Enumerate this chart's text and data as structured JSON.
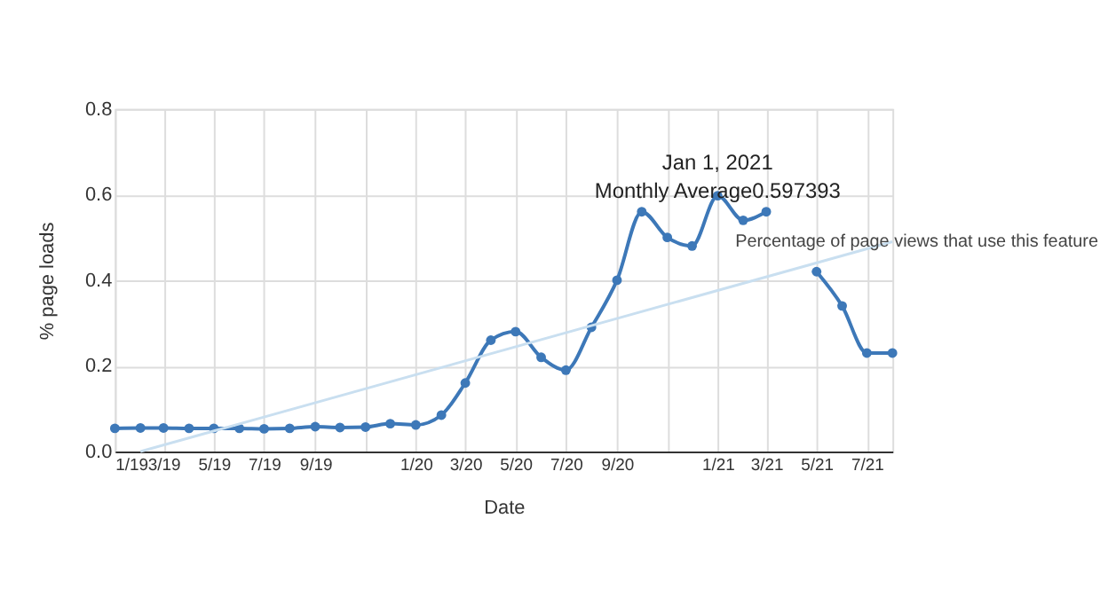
{
  "chart_data": {
    "type": "line",
    "xlabel": "Date",
    "ylabel": "% page loads",
    "x": [
      "2019-01",
      "2019-02",
      "2019-03",
      "2019-04",
      "2019-05",
      "2019-06",
      "2019-07",
      "2019-08",
      "2019-09",
      "2019-10",
      "2019-11",
      "2019-12",
      "2020-01",
      "2020-02",
      "2020-03",
      "2020-04",
      "2020-05",
      "2020-06",
      "2020-07",
      "2020-08",
      "2020-09",
      "2020-10",
      "2020-11",
      "2020-12",
      "2021-01",
      "2021-02",
      "2021-03",
      "2021-04",
      "2021-05",
      "2021-06",
      "2021-07",
      "2021-08"
    ],
    "series": [
      {
        "color": "#3d78b8",
        "marker": "circle",
        "values": [
          0.054,
          0.055,
          0.055,
          0.054,
          0.054,
          0.054,
          0.053,
          0.054,
          0.058,
          0.056,
          0.057,
          0.065,
          0.062,
          0.085,
          0.16,
          0.26,
          0.28,
          0.22,
          0.19,
          0.29,
          0.4,
          0.56,
          0.5,
          0.48,
          0.597393,
          0.54,
          0.56,
          null,
          0.42,
          0.34,
          0.23,
          0.23
        ]
      },
      {
        "type": "line",
        "color": "#c9dff0",
        "marker": "none",
        "x": [
          "2019-02",
          "2021-08"
        ],
        "values": [
          0.0,
          0.49
        ]
      }
    ],
    "xlim": [
      "2019-01",
      "2021-08"
    ],
    "xticks": [
      {
        "value": "2019-01",
        "label": "1/19"
      },
      {
        "value": "2019-03",
        "label": "3/19"
      },
      {
        "value": "2019-05",
        "label": "5/19"
      },
      {
        "value": "2019-07",
        "label": "7/19"
      },
      {
        "value": "2019-09",
        "label": "9/19"
      },
      {
        "value": "2019-11",
        "label": null
      },
      {
        "value": "2020-01",
        "label": "1/20"
      },
      {
        "value": "2020-03",
        "label": "3/20"
      },
      {
        "value": "2020-05",
        "label": "5/20"
      },
      {
        "value": "2020-07",
        "label": "7/20"
      },
      {
        "value": "2020-09",
        "label": "9/20"
      },
      {
        "value": "2020-11",
        "label": null
      },
      {
        "value": "2021-01",
        "label": "1/21"
      },
      {
        "value": "2021-03",
        "label": "3/21"
      },
      {
        "value": "2021-05",
        "label": "5/21"
      },
      {
        "value": "2021-07",
        "label": "7/21"
      }
    ],
    "ylim": [
      0,
      0.8
    ],
    "yticks": [
      {
        "value": 0,
        "label": "0.0"
      },
      {
        "value": 0.2,
        "label": "0.2"
      },
      {
        "value": 0.4,
        "label": "0.4"
      },
      {
        "value": 0.6,
        "label": "0.6"
      },
      {
        "value": 0.8,
        "label": "0.8"
      }
    ],
    "grid": true,
    "annotations": [
      {
        "text": "Jan 1, 2021\nMonthly Average0.597393",
        "x": "2021-01",
        "y": 0.597393
      },
      {
        "text": "Percentage of page views that use this feature",
        "x": "2021-01",
        "y": 0.597393
      }
    ]
  }
}
